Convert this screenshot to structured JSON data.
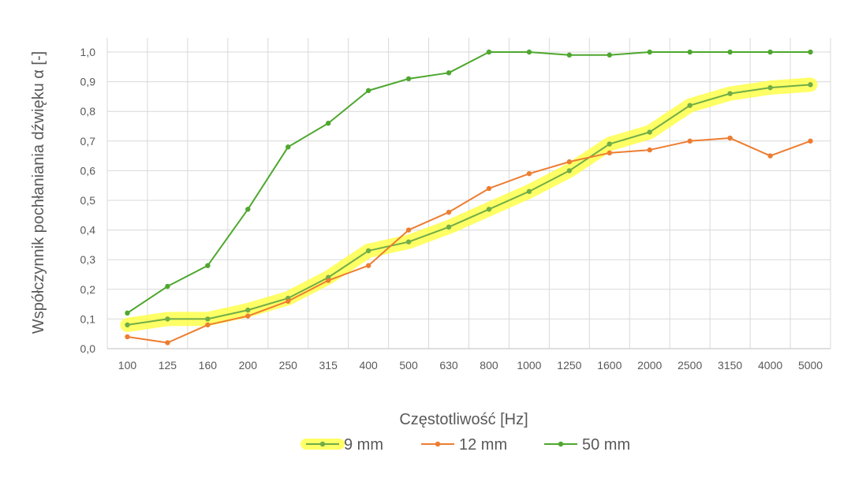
{
  "chart_data": {
    "type": "line",
    "title": "",
    "xlabel": "Częstotliwość [Hz]",
    "ylabel": "Współczynnik pochłaniania dźwięku α [-]",
    "categories": [
      "100",
      "125",
      "160",
      "200",
      "250",
      "315",
      "400",
      "500",
      "630",
      "800",
      "1000",
      "1250",
      "1600",
      "2000",
      "2500",
      "3150",
      "4000",
      "5000"
    ],
    "ylim": [
      0,
      1
    ],
    "yticks": [
      "0,0",
      "0,1",
      "0,2",
      "0,3",
      "0,4",
      "0,5",
      "0,6",
      "0,7",
      "0,8",
      "0,9",
      "1,0"
    ],
    "grid": true,
    "legend_position": "bottom",
    "series": [
      {
        "name": "9 mm",
        "color": "#70AD47",
        "highlight": "#FFFF33",
        "values": [
          0.08,
          0.1,
          0.1,
          0.13,
          0.17,
          0.24,
          0.33,
          0.36,
          0.41,
          0.47,
          0.53,
          0.6,
          0.69,
          0.73,
          0.82,
          0.86,
          0.88,
          0.89
        ]
      },
      {
        "name": "12 mm",
        "color": "#ED7D31",
        "values": [
          0.04,
          0.02,
          0.08,
          0.11,
          0.16,
          0.23,
          0.28,
          0.4,
          0.46,
          0.54,
          0.59,
          0.63,
          0.66,
          0.67,
          0.7,
          0.71,
          0.65,
          0.7
        ]
      },
      {
        "name": "50 mm",
        "color": "#4EA72E",
        "values": [
          0.12,
          0.21,
          0.28,
          0.47,
          0.68,
          0.76,
          0.87,
          0.91,
          0.93,
          1.0,
          1.0,
          0.99,
          0.99,
          1.0,
          1.0,
          1.0,
          1.0,
          1.0
        ]
      }
    ]
  }
}
